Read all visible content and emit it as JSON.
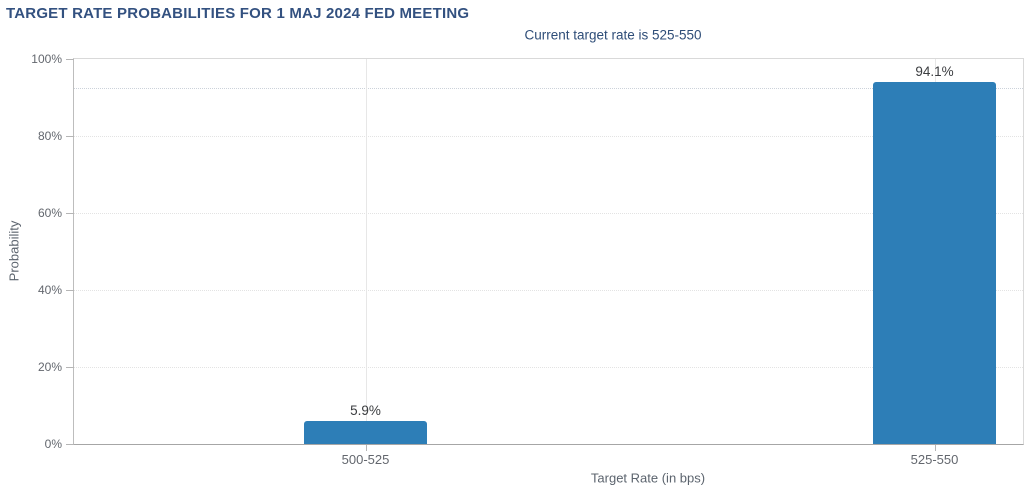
{
  "page": {
    "title": "TARGET RATE PROBABILITIES FOR 1 MAJ 2024 FED MEETING",
    "subtitle": "Current target rate is 525-550"
  },
  "chart_data": {
    "type": "bar",
    "title": "TARGET RATE PROBABILITIES FOR 1 MAJ 2024 FED MEETING",
    "subtitle": "Current target rate is 525-550",
    "categories": [
      "500-525",
      "525-550"
    ],
    "values": [
      5.9,
      94.1
    ],
    "value_labels": [
      "5.9%",
      "94.1%"
    ],
    "xlabel": "Target Rate (in bps)",
    "ylabel": "Probability",
    "ylim": [
      0,
      100
    ],
    "y_tick_interval": 20,
    "y_tick_labels": [
      "0%",
      "20%",
      "40%",
      "60%",
      "80%",
      "100%"
    ],
    "grid": true,
    "legend": false,
    "reference_line_pct": 92.5
  },
  "colors": {
    "title": "#335180",
    "subtitle": "#2e4d78",
    "bar": "#2d7eb7",
    "axis_line": "#a6a6a6",
    "gridline": "#e3e3e3",
    "tick_label": "#63676e",
    "value_label": "#3b3d40",
    "axis_title": "#5c646e",
    "background": "#ffffff"
  }
}
